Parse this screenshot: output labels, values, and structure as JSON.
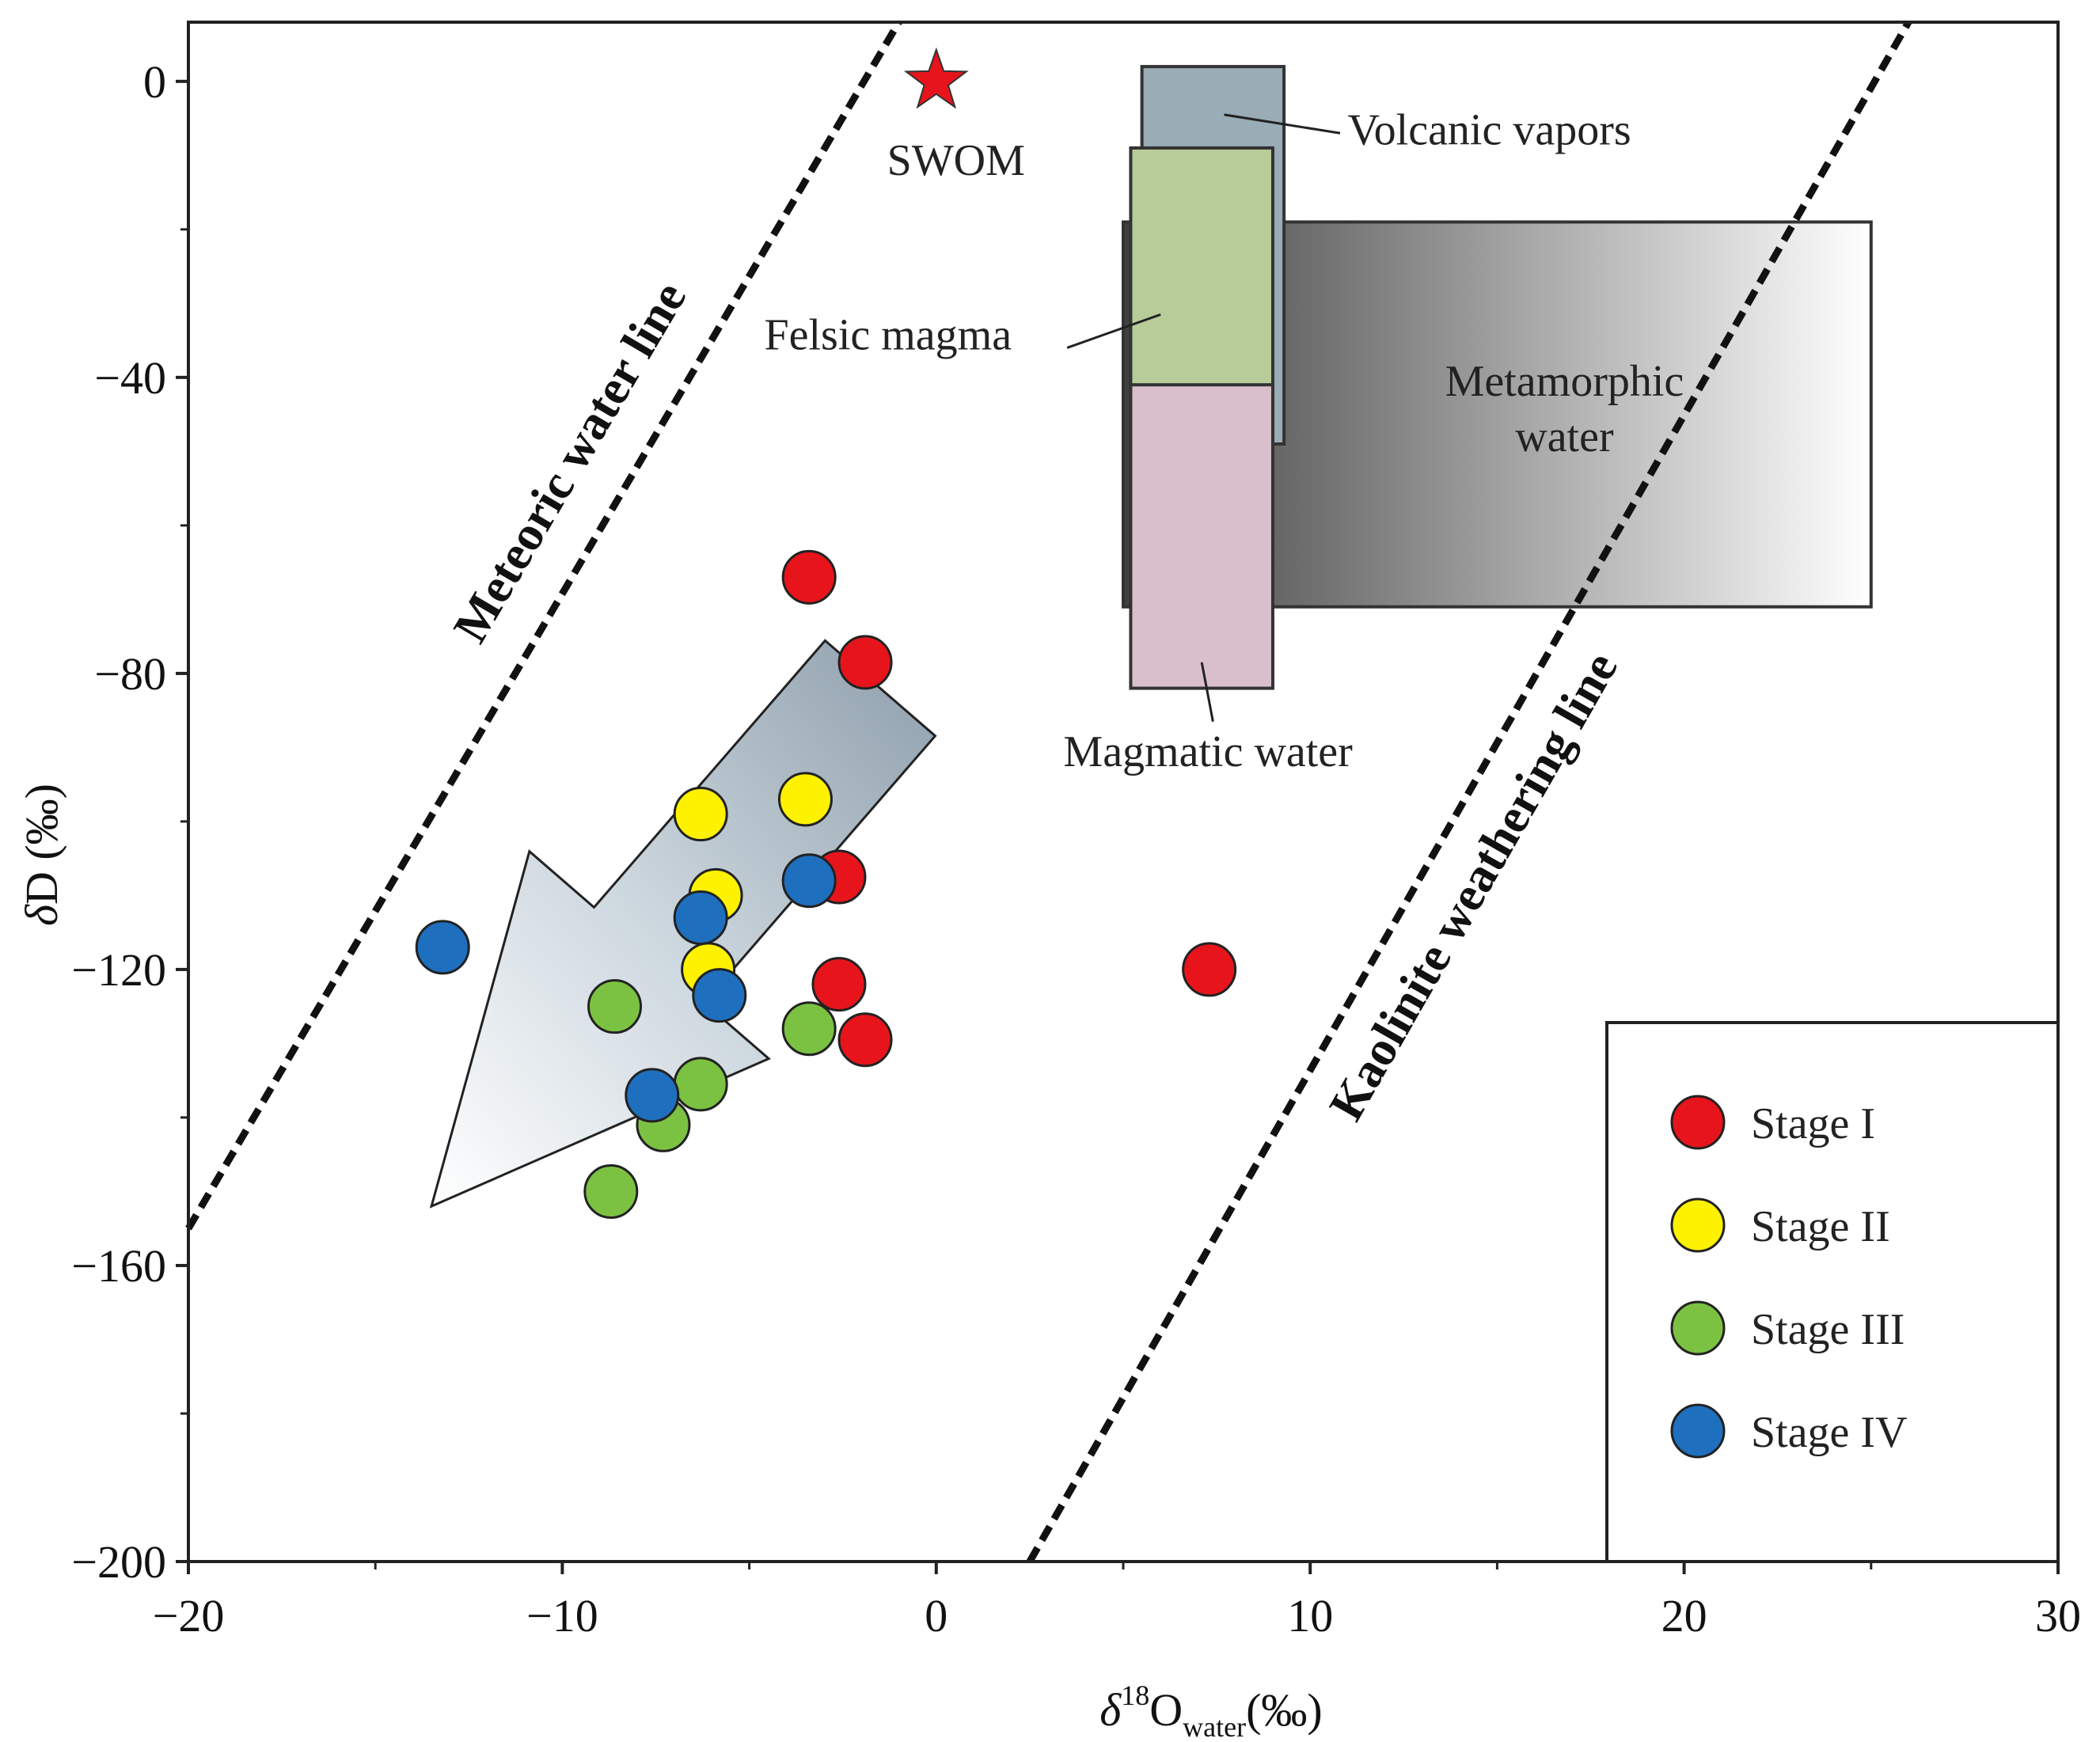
{
  "chart_data": {
    "type": "scatter",
    "xlabel": {
      "prefix": "δ",
      "sup": "18",
      "main": "O",
      "sub": "water",
      "suffix": "(‰)"
    },
    "ylabel": {
      "prefix": "δ",
      "main": "D (‰)"
    },
    "xlim": [
      -20,
      30
    ],
    "ylim": [
      -200,
      8
    ],
    "x_ticks": [
      -20,
      -10,
      0,
      10,
      20,
      30
    ],
    "x_tick_labels": [
      "−20",
      "−10",
      "0",
      "10",
      "20",
      "30"
    ],
    "y_ticks": [
      0,
      -40,
      -80,
      -120,
      -160,
      -200
    ],
    "y_tick_labels": [
      "0",
      "−40",
      "−80",
      "−120",
      "−160",
      "−200"
    ],
    "x_minor_ticks": [
      -15,
      -5,
      5,
      15,
      25
    ],
    "y_minor_ticks": [
      -20,
      -60,
      -100,
      -140,
      -180
    ],
    "series": [
      {
        "name": "Stage I",
        "color": "#e8141b",
        "points": [
          [
            -3.4,
            -67
          ],
          [
            -1.9,
            -78.5
          ],
          [
            -2.6,
            -107.5
          ],
          [
            -2.6,
            -122
          ],
          [
            -1.9,
            -129.5
          ],
          [
            7.3,
            -120
          ]
        ]
      },
      {
        "name": "Stage II",
        "color": "#fff200",
        "points": [
          [
            -6.3,
            -99
          ],
          [
            -3.5,
            -97
          ],
          [
            -5.9,
            -110
          ],
          [
            -6.1,
            -120
          ]
        ]
      },
      {
        "name": "Stage III",
        "color": "#7cc242",
        "points": [
          [
            -8.6,
            -125
          ],
          [
            -3.4,
            -128
          ],
          [
            -6.3,
            -135.5
          ],
          [
            -7.3,
            -141
          ],
          [
            -8.7,
            -150
          ]
        ]
      },
      {
        "name": "Stage IV",
        "color": "#1f6fbf",
        "points": [
          [
            -13.2,
            -117
          ],
          [
            -3.4,
            -108
          ],
          [
            -6.3,
            -113
          ],
          [
            -5.8,
            -123.5
          ],
          [
            -7.6,
            -137
          ]
        ]
      }
    ],
    "reference_point": {
      "label": "SWOM",
      "x": 0,
      "y": 0,
      "color": "#e8141b"
    },
    "lines": [
      {
        "label": "Meteoric water line",
        "from": [
          -20,
          -155
        ],
        "to": [
          -1,
          8
        ]
      },
      {
        "label": "Kaolinite weathering line",
        "from": [
          2.5,
          -200
        ],
        "to": [
          26,
          8
        ]
      }
    ],
    "regions": [
      {
        "label": "Volcanic vapors",
        "x": [
          5.5,
          9.3
        ],
        "y": [
          -49,
          2
        ],
        "color": "#9aacb5"
      },
      {
        "label": "Metamorphic water",
        "x": [
          5,
          25
        ],
        "y": [
          -71,
          -19
        ],
        "fill": "gradient"
      },
      {
        "label": "Felsic magma",
        "x": [
          5.2,
          9
        ],
        "y": [
          -61,
          -9
        ],
        "color": "#b8cc9a"
      },
      {
        "label": "Magmatic water",
        "x": [
          5.2,
          9
        ],
        "y": [
          -82,
          -41
        ],
        "color": "#d9bfcc"
      }
    ],
    "trend_arrow": {
      "from": [
        -1.5,
        -82
      ],
      "to": [
        -13.5,
        -152
      ]
    },
    "legend": {
      "position": "bottom-right",
      "entries": [
        "Stage I",
        "Stage II",
        "Stage III",
        "Stage IV"
      ]
    }
  }
}
